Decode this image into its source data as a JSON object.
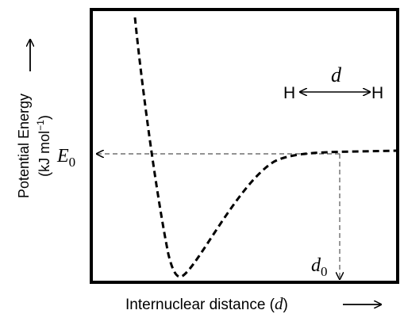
{
  "figure": {
    "y_axis": {
      "label_line1": "Potential Energy",
      "label_line2_prefix": "(kJ mol",
      "label_line2_exp": "−1",
      "label_line2_suffix": ")"
    },
    "x_axis": {
      "label_prefix": "Internuclear distance (",
      "label_var": "d",
      "label_suffix": ")"
    },
    "e0_label": {
      "base": "E",
      "sub": "0"
    },
    "d0_label": {
      "base": "d",
      "sub": "0"
    },
    "molecule": {
      "left_atom": "H",
      "right_atom": "H",
      "distance_symbol": "d"
    },
    "colors": {
      "curve": "#000000",
      "frame": "#000000",
      "guide": "#555555",
      "background": "#ffffff"
    }
  }
}
